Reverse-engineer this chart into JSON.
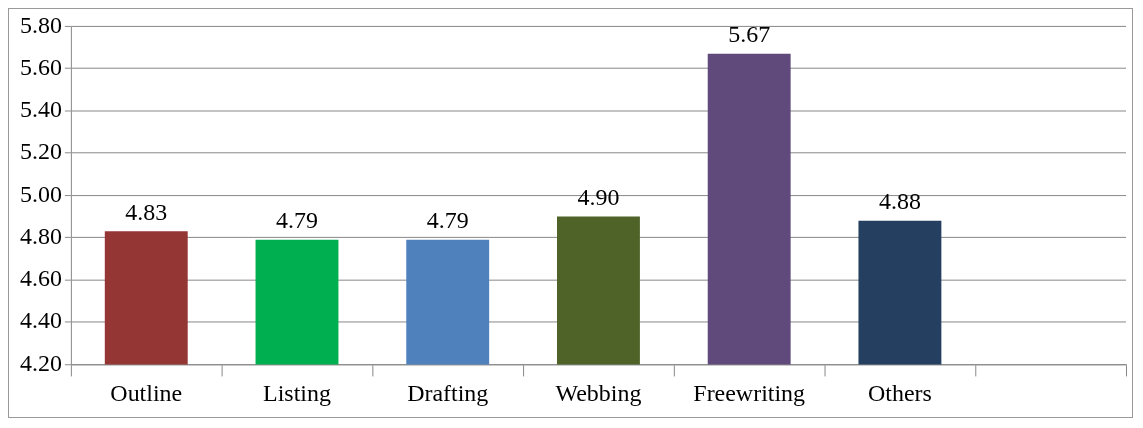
{
  "chart_data": {
    "type": "bar",
    "categories": [
      "Outline",
      "Listing",
      "Drafting",
      "Webbing",
      "Freewriting",
      "Others",
      null
    ],
    "values": [
      4.83,
      4.79,
      4.79,
      4.9,
      5.67,
      4.88,
      null
    ],
    "colors": [
      "#943634",
      "#00b050",
      "#4f81bd",
      "#4f6228",
      "#604a7b",
      "#243f60",
      null
    ],
    "value_labels": [
      "4.83",
      "4.79",
      "4.79",
      "4.90",
      "5.67",
      "4.88",
      null
    ],
    "ylim": [
      4.2,
      5.8
    ],
    "yticks": [
      {
        "value": 4.2,
        "label": "4.20"
      },
      {
        "value": 4.4,
        "label": "4.40"
      },
      {
        "value": 4.6,
        "label": "4.60"
      },
      {
        "value": 4.8,
        "label": "4.80"
      },
      {
        "value": 5.0,
        "label": "5.00"
      },
      {
        "value": 5.2,
        "label": "5.20"
      },
      {
        "value": 5.4,
        "label": "5.40"
      },
      {
        "value": 5.6,
        "label": "5.60"
      },
      {
        "value": 5.8,
        "label": "5.80"
      }
    ],
    "grid": "y",
    "legend": false
  }
}
